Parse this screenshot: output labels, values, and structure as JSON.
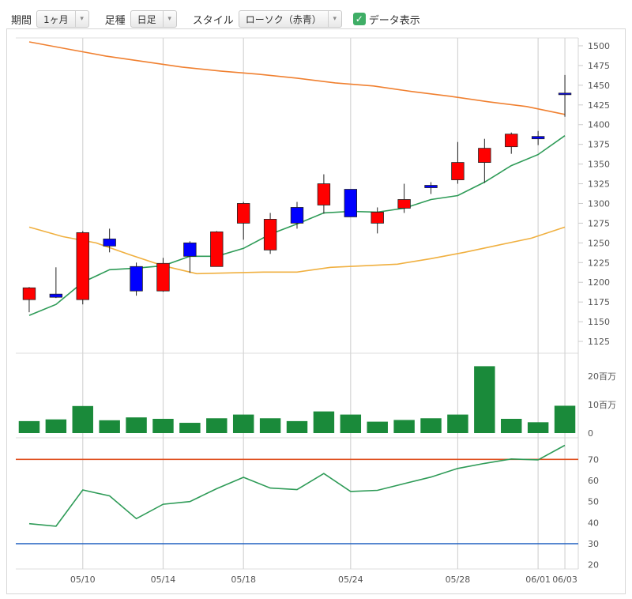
{
  "toolbar": {
    "period_label": "期間",
    "period_value": "1ヶ月",
    "bar_label": "足種",
    "bar_value": "日足",
    "style_label": "スタイル",
    "style_value": "ローソク（赤青）",
    "data_label": "データ表示",
    "data_checked": true,
    "check_glyph": "✓",
    "dropdown_glyph": "▾"
  },
  "colors": {
    "up": "#ff0000",
    "down": "#0000ff",
    "volume": "#1a8a3a",
    "ma_short": "#2e9b57",
    "ma_mid": "#f08030",
    "ma_long": "#f0b040",
    "rsi_line": "#2e9b57",
    "rsi_upper": "#e05020",
    "rsi_lower": "#2060c0"
  },
  "chart_data": [
    {
      "type": "candlestick",
      "y_ticks": [
        "1500",
        "1475",
        "1450",
        "1425",
        "1400",
        "1375",
        "1350",
        "1325",
        "1300",
        "1275",
        "1250",
        "1225",
        "1200",
        "1175",
        "1150",
        "1125"
      ],
      "ylim": [
        1110,
        1510
      ],
      "x_labels": [
        "05/10",
        "05/14",
        "05/18",
        "05/24",
        "05/28",
        "06/01",
        "06/03"
      ],
      "x_label_index": [
        2,
        5,
        8,
        12,
        16,
        19,
        20
      ],
      "candles": [
        {
          "o": 1178,
          "h": 1194,
          "l": 1162,
          "c": 1193
        },
        {
          "o": 1185,
          "h": 1219,
          "l": 1180,
          "c": 1181
        },
        {
          "o": 1178,
          "h": 1265,
          "l": 1172,
          "c": 1263
        },
        {
          "o": 1255,
          "h": 1268,
          "l": 1238,
          "c": 1246
        },
        {
          "o": 1220,
          "h": 1225,
          "l": 1183,
          "c": 1189
        },
        {
          "o": 1189,
          "h": 1231,
          "l": 1188,
          "c": 1224
        },
        {
          "o": 1250,
          "h": 1252,
          "l": 1212,
          "c": 1233
        },
        {
          "o": 1220,
          "h": 1265,
          "l": 1220,
          "c": 1264
        },
        {
          "o": 1275,
          "h": 1302,
          "l": 1254,
          "c": 1300
        },
        {
          "o": 1241,
          "h": 1288,
          "l": 1236,
          "c": 1280
        },
        {
          "o": 1295,
          "h": 1302,
          "l": 1268,
          "c": 1275
        },
        {
          "o": 1298,
          "h": 1337,
          "l": 1287,
          "c": 1325
        },
        {
          "o": 1318,
          "h": 1318,
          "l": 1283,
          "c": 1283
        },
        {
          "o": 1275,
          "h": 1295,
          "l": 1262,
          "c": 1289
        },
        {
          "o": 1294,
          "h": 1325,
          "l": 1288,
          "c": 1305
        },
        {
          "o": 1323,
          "h": 1327,
          "l": 1312,
          "c": 1320
        },
        {
          "o": 1330,
          "h": 1378,
          "l": 1325,
          "c": 1352
        },
        {
          "o": 1352,
          "h": 1382,
          "l": 1326,
          "c": 1370
        },
        {
          "o": 1372,
          "h": 1390,
          "l": 1363,
          "c": 1388
        },
        {
          "o": 1385,
          "h": 1392,
          "l": 1374,
          "c": 1382
        },
        {
          "o": 1440,
          "h": 1463,
          "l": 1410,
          "c": 1438
        }
      ],
      "ma_short": [
        1158,
        1172,
        1200,
        1216,
        1218,
        1221,
        1233,
        1233,
        1243,
        1261,
        1274,
        1288,
        1290,
        1289,
        1294,
        1305,
        1310,
        1327,
        1348,
        1362,
        1386
      ],
      "ma_mid": [
        1505,
        1496,
        1487,
        1480,
        1473,
        1468,
        1464,
        1459,
        1453,
        1449,
        1442,
        1436,
        1429,
        1423,
        1413
      ],
      "ma_long": [
        1270,
        1258,
        1250,
        1235,
        1221,
        1211,
        1212,
        1213,
        1213,
        1219,
        1221,
        1223,
        1230,
        1238,
        1247,
        1256,
        1270
      ]
    },
    {
      "type": "bar",
      "name": "volume",
      "y_ticks": [
        "20百万",
        "10百万",
        "0"
      ],
      "ylim": [
        0,
        25
      ],
      "values": [
        4.2,
        4.8,
        9.5,
        4.5,
        5.5,
        5.0,
        3.6,
        5.2,
        6.5,
        5.2,
        4.2,
        7.6,
        6.5,
        4.0,
        4.6,
        5.2,
        6.5,
        23.5,
        5.0,
        3.8,
        9.6
      ]
    },
    {
      "type": "line",
      "name": "rsi",
      "y_ticks": [
        "70",
        "60",
        "50",
        "40",
        "30",
        "20"
      ],
      "ylim": [
        18,
        78
      ],
      "values": [
        39.5,
        38.3,
        55.5,
        52.7,
        41.9,
        48.7,
        50.0,
        56.1,
        61.5,
        56.4,
        55.7,
        63.3,
        54.8,
        55.3,
        58.5,
        61.6,
        65.7,
        68.1,
        70.2,
        69.8,
        76.7
      ],
      "upper": 70,
      "lower": 30
    }
  ]
}
